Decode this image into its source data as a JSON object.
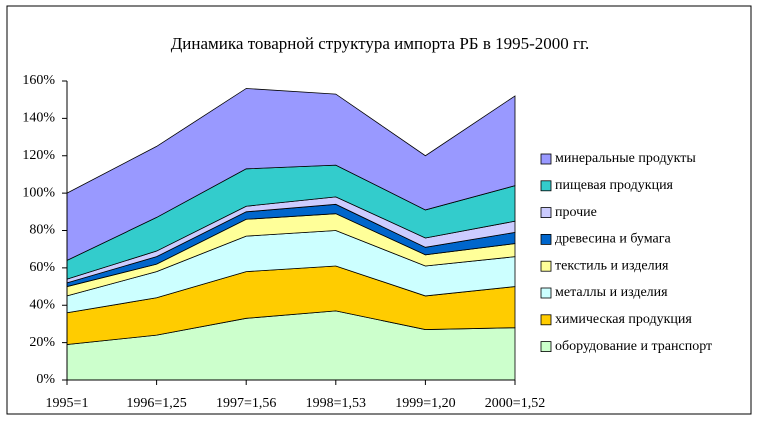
{
  "chart_data": {
    "type": "stacked_area",
    "title": "Динамика товарной структура импорта РБ в 1995-2000 гг.",
    "categories": [
      "1995=1",
      "1996=1,25",
      "1997=1,56",
      "1998=1,53",
      "1999=1,20",
      "2000=1,52"
    ],
    "series": [
      {
        "name": "оборудование и транспорт",
        "color": "#ccffcc",
        "values": [
          19,
          24,
          33,
          37,
          27,
          28
        ]
      },
      {
        "name": "химическая продукция",
        "color": "#ffcc00",
        "values": [
          17,
          20,
          25,
          24,
          18,
          22
        ]
      },
      {
        "name": "металлы и изделия",
        "color": "#ccffff",
        "values": [
          9,
          14,
          19,
          19,
          16,
          16
        ]
      },
      {
        "name": "текстиль и изделия",
        "color": "#ffff99",
        "values": [
          5,
          4,
          9,
          9,
          6,
          7
        ]
      },
      {
        "name": "древесина и бумага",
        "color": "#0066cc",
        "values": [
          2,
          4,
          4,
          5,
          4,
          6
        ]
      },
      {
        "name": "прочие",
        "color": "#ccccff",
        "values": [
          2,
          3,
          3,
          4,
          5,
          6
        ]
      },
      {
        "name": "пищевая продукция",
        "color": "#33cccc",
        "values": [
          10,
          18,
          20,
          17,
          15,
          19
        ]
      },
      {
        "name": "минеральные продукты",
        "color": "#9999ff",
        "values": [
          36,
          38,
          43,
          38,
          29,
          48
        ]
      }
    ],
    "ylim": [
      0,
      160
    ],
    "yticks": [
      {
        "value": 0,
        "label": "0%"
      },
      {
        "value": 20,
        "label": "20%"
      },
      {
        "value": 40,
        "label": "40%"
      },
      {
        "value": 60,
        "label": "60%"
      },
      {
        "value": 80,
        "label": "80%"
      },
      {
        "value": 100,
        "label": "100%"
      },
      {
        "value": 120,
        "label": "120%"
      },
      {
        "value": 140,
        "label": "140%"
      },
      {
        "value": 160,
        "label": "160%"
      }
    ],
    "legend": "right",
    "grid": false
  }
}
